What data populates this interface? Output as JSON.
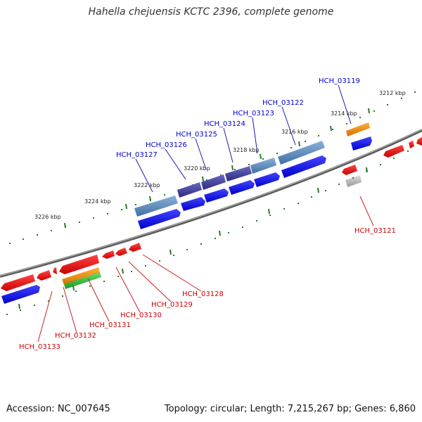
{
  "title": "Hahella chejuensis KCTC 2396, complete genome",
  "footer": {
    "accession": "Accession: NC_007645",
    "stats": "Topology: circular; Length: 7,215,267 bp; Genes: 6,860"
  },
  "kbp_labels": [
    "3212 kbp",
    "3214 kbp",
    "3216 kbp",
    "3218 kbp",
    "3220 kbp",
    "3222 kbp",
    "3224 kbp",
    "3226 kbp"
  ],
  "gene_labels": {
    "forward": [
      "HCH_03119",
      "HCH_03122",
      "HCH_03123",
      "HCH_03124",
      "HCH_03125",
      "HCH_03126",
      "HCH_03127"
    ],
    "reverse": [
      "HCH_03121",
      "HCH_03128",
      "HCH_03129",
      "HCH_03130",
      "HCH_03131",
      "HCH_03132",
      "HCH_03133"
    ]
  },
  "colors": {
    "forward_label": "#0000cc",
    "reverse_label": "#cc0000",
    "forward_cds": "#0000ee",
    "reverse_cds": "#ee0000",
    "gene_feature": "#4a80b8",
    "orange_feature": "#f08a00",
    "green_feature": "#33bb33",
    "grey_feature": "#b8b8b8",
    "tick": "#2a7a2a",
    "backbone": "#777777"
  }
}
